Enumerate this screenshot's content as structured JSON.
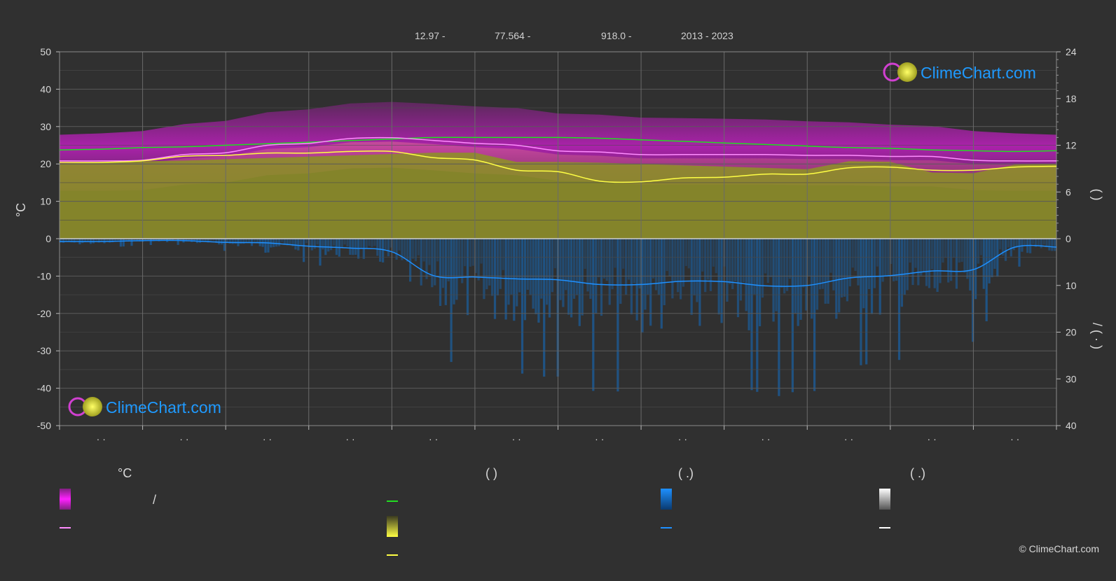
{
  "header": {
    "lat": "12.97 -",
    "lon": "77.564 -",
    "elev": "918.0 -",
    "years": "2013 - 2023"
  },
  "logo_text": "ClimeChart.com",
  "copyright": "© ClimeChart.com",
  "legend": {
    "temp_title": "°C",
    "sun_title": "(          )",
    "rain_title": "(   .)",
    "snow_title": "(   .)",
    "slash": "/"
  },
  "colors": {
    "background": "#303030",
    "temp_range": "#d020d0",
    "temp_mean": "#ff8cff",
    "daylight": "#22dd22",
    "sunshine_fill": "#c8c830",
    "sunshine_line": "#ffff44",
    "rain_fill": "#1a5fa0",
    "rain_line": "#1e90ff",
    "snow_line": "#ffffff",
    "logo_blue": "#1f9aff"
  },
  "chart_data": {
    "type": "line",
    "x_labels": [
      "· ·",
      "· ·",
      "· ·",
      "· ·",
      "· ·",
      "· ·",
      "· ·",
      "· ·",
      "· ·",
      "· ·",
      "· ·",
      "· ·"
    ],
    "y_left": {
      "label": "°C",
      "range": [
        -50,
        50
      ],
      "ticks": [
        50,
        40,
        30,
        20,
        10,
        0,
        -10,
        -20,
        -30,
        -40,
        -50
      ]
    },
    "y_right_top": {
      "label": "(   )",
      "range": [
        0,
        24
      ],
      "ticks": [
        24,
        18,
        12,
        6,
        0
      ]
    },
    "y_right_bottom": {
      "label": "/   (  ·  )",
      "range": [
        0,
        40
      ],
      "ticks": [
        0,
        10,
        20,
        30,
        40
      ]
    },
    "grid": true,
    "series": [
      {
        "key": "daylight",
        "unit": "h",
        "x": [
          0,
          0.5,
          1,
          1.5,
          2,
          2.5,
          3,
          3.5,
          4,
          4.5,
          5,
          5.5,
          6,
          6.5,
          7,
          7.5,
          8,
          8.5,
          9,
          9.5,
          10,
          10.5,
          11,
          11.5,
          12
        ],
        "values": [
          11.4,
          11.5,
          11.7,
          11.8,
          12.0,
          12.2,
          12.4,
          12.6,
          12.8,
          13.0,
          13.0,
          13.0,
          13.0,
          12.9,
          12.7,
          12.5,
          12.3,
          12.1,
          11.9,
          11.7,
          11.6,
          11.4,
          11.3,
          11.2,
          11.3
        ]
      },
      {
        "key": "temp_mean",
        "unit": "°C",
        "x": [
          0,
          0.5,
          1,
          1.5,
          2,
          2.5,
          3,
          3.5,
          4,
          4.5,
          5,
          5.5,
          6,
          6.5,
          7,
          7.5,
          8,
          8.5,
          9,
          9.5,
          10,
          10.5,
          11,
          11.5,
          12
        ],
        "values": [
          20.8,
          20.8,
          21.0,
          22.5,
          23.0,
          25.0,
          25.5,
          26.8,
          27.0,
          26.3,
          25.5,
          25.0,
          23.5,
          23.2,
          22.5,
          22.5,
          22.5,
          22.5,
          22.3,
          22.3,
          22.0,
          22.0,
          21.0,
          20.8,
          20.8
        ]
      },
      {
        "key": "sunshine",
        "unit": "h",
        "x": [
          0,
          0.5,
          1,
          1.5,
          2,
          2.5,
          3,
          3.5,
          4,
          4.5,
          5,
          5.5,
          6,
          6.5,
          7,
          7.5,
          8,
          8.5,
          9,
          9.5,
          10,
          10.5,
          11,
          11.5,
          12
        ],
        "values": [
          9.8,
          9.8,
          10.0,
          10.6,
          10.7,
          11.0,
          11.0,
          11.2,
          11.2,
          10.4,
          10.1,
          8.8,
          8.6,
          7.4,
          7.3,
          7.8,
          7.9,
          8.3,
          8.3,
          9.1,
          9.2,
          8.8,
          8.8,
          9.2,
          9.3
        ]
      },
      {
        "key": "rain",
        "unit": "mm/day",
        "x": [
          0,
          0.5,
          1,
          1.5,
          2,
          2.5,
          3,
          3.5,
          4,
          4.5,
          5,
          5.5,
          6,
          6.5,
          7,
          7.5,
          8,
          8.5,
          9,
          9.5,
          10,
          10.5,
          11,
          11.5,
          12
        ],
        "values": [
          0.6,
          0.6,
          0.4,
          0.4,
          0.8,
          0.9,
          1.6,
          2.0,
          2.8,
          7.9,
          8.2,
          8.6,
          8.8,
          9.8,
          9.8,
          9.1,
          9.2,
          10.1,
          10.0,
          8.4,
          7.9,
          6.9,
          6.6,
          1.8,
          1.8
        ]
      }
    ]
  }
}
